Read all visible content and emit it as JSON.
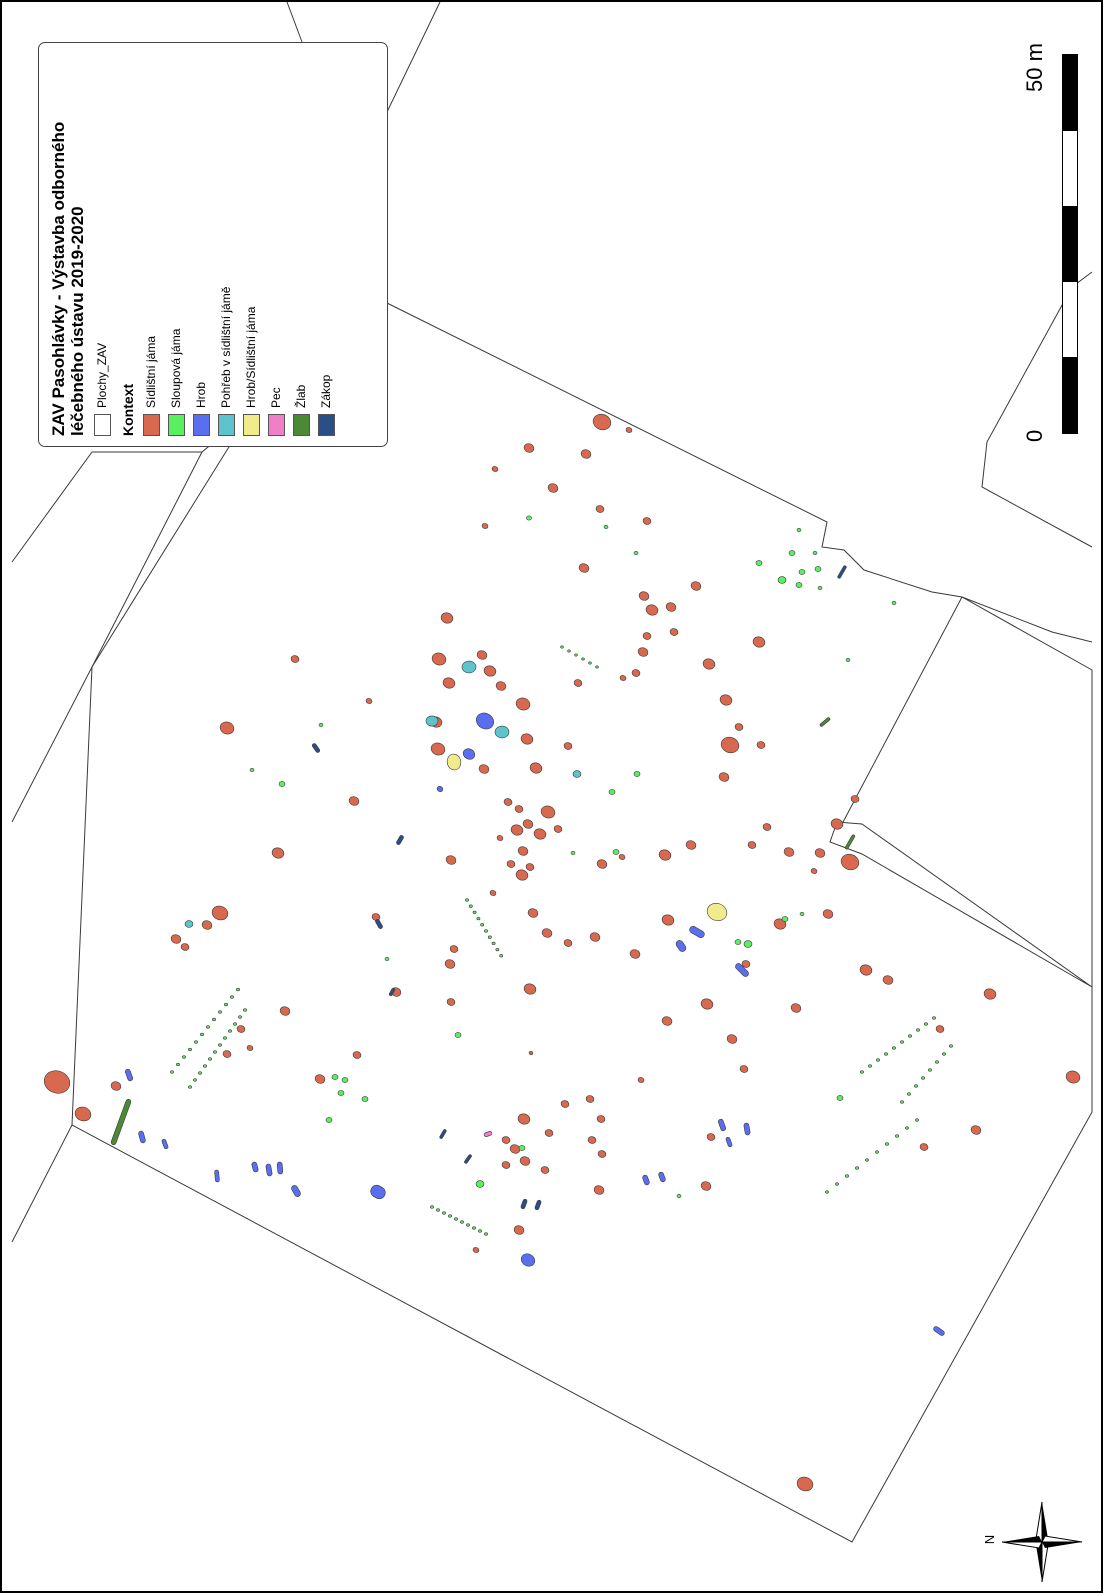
{
  "map": {
    "title": "ZAV Pasohlávky - Výstavba odborného léčebného ústavu 2019-2020",
    "title_line1": "ZAV Pasohlávky - Výstavba odborného",
    "title_line2": "léčebného ústavu 2019-2020",
    "plochy_label": "Plochy_ZAV",
    "kontext_heading": "Kontext",
    "categories": [
      {
        "label": "Sídlištní jáma",
        "color": "#d9694e"
      },
      {
        "label": "Sloupová jáma",
        "color": "#59f060"
      },
      {
        "label": "Hrob",
        "color": "#5a6ef0"
      },
      {
        "label": "Pohřeb v sídlištní jámě",
        "color": "#5ec4cc"
      },
      {
        "label": "Hrob/Sídlištní jáma",
        "color": "#f0ec8c"
      },
      {
        "label": "Pec",
        "color": "#f07ec8"
      },
      {
        "label": "Žlab",
        "color": "#4a8a34"
      },
      {
        "label": "Zákop",
        "color": "#2b4e86"
      }
    ],
    "scale": {
      "start": "0",
      "end": "50",
      "unit": "m"
    },
    "north": "N"
  }
}
